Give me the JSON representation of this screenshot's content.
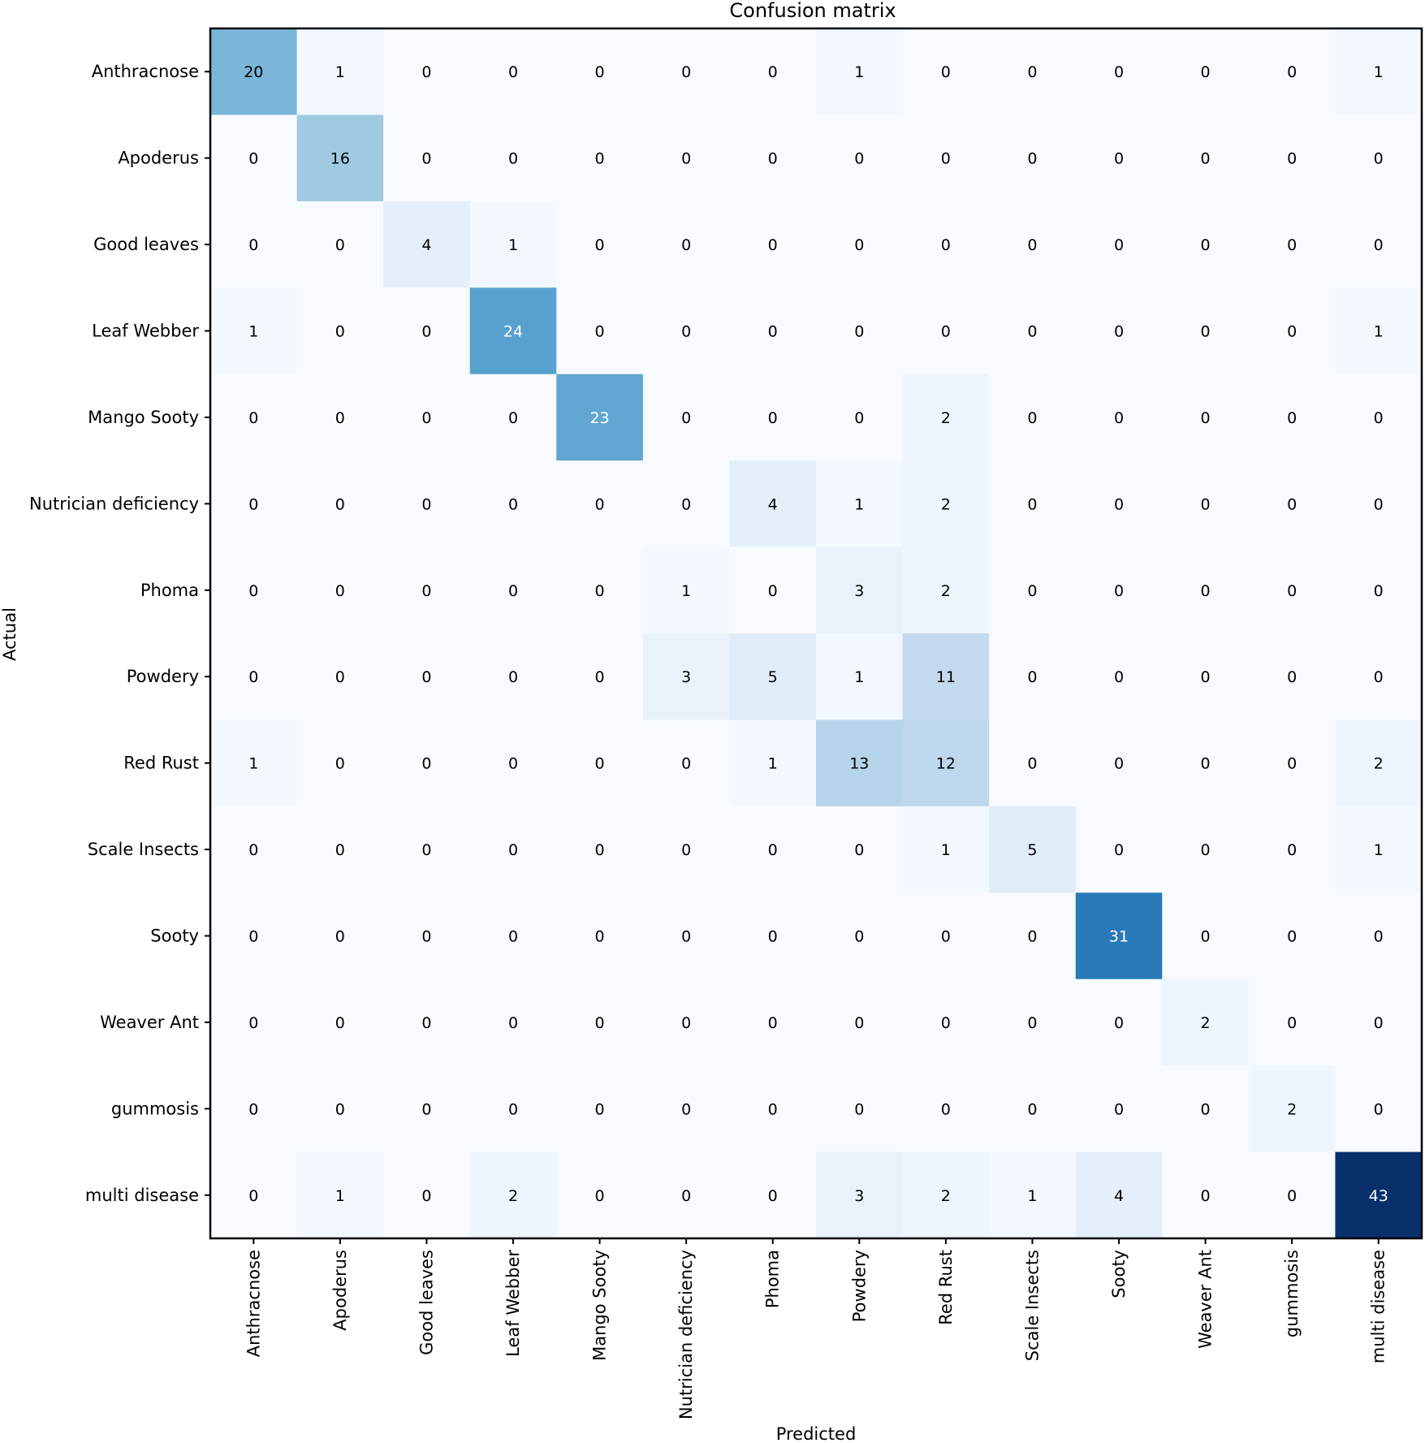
{
  "chart_data": {
    "type": "heatmap",
    "title": "Confusion matrix",
    "xlabel": "Predicted",
    "ylabel": "Actual",
    "colormap": "Blues",
    "x_categories": [
      "Anthracnose",
      "Apoderus",
      "Good leaves",
      "Leaf Webber",
      "Mango Sooty",
      "Nutrician deficiency",
      "Phoma",
      "Powdery",
      "Red Rust",
      "Scale Insects",
      "Sooty",
      "Weaver Ant",
      "gummosis",
      "multi disease"
    ],
    "y_categories": [
      "Anthracnose",
      "Apoderus",
      "Good leaves",
      "Leaf Webber",
      "Mango Sooty",
      "Nutrician deficiency",
      "Phoma",
      "Powdery",
      "Red Rust",
      "Scale Insects",
      "Sooty",
      "Weaver Ant",
      "gummosis",
      "multi disease"
    ],
    "values": [
      [
        20,
        1,
        0,
        0,
        0,
        0,
        0,
        1,
        0,
        0,
        0,
        0,
        0,
        1
      ],
      [
        0,
        16,
        0,
        0,
        0,
        0,
        0,
        0,
        0,
        0,
        0,
        0,
        0,
        0
      ],
      [
        0,
        0,
        4,
        1,
        0,
        0,
        0,
        0,
        0,
        0,
        0,
        0,
        0,
        0
      ],
      [
        1,
        0,
        0,
        24,
        0,
        0,
        0,
        0,
        0,
        0,
        0,
        0,
        0,
        1
      ],
      [
        0,
        0,
        0,
        0,
        23,
        0,
        0,
        0,
        2,
        0,
        0,
        0,
        0,
        0
      ],
      [
        0,
        0,
        0,
        0,
        0,
        0,
        4,
        1,
        2,
        0,
        0,
        0,
        0,
        0
      ],
      [
        0,
        0,
        0,
        0,
        0,
        1,
        0,
        3,
        2,
        0,
        0,
        0,
        0,
        0
      ],
      [
        0,
        0,
        0,
        0,
        0,
        3,
        5,
        1,
        11,
        0,
        0,
        0,
        0,
        0
      ],
      [
        1,
        0,
        0,
        0,
        0,
        0,
        1,
        13,
        12,
        0,
        0,
        0,
        0,
        2
      ],
      [
        0,
        0,
        0,
        0,
        0,
        0,
        0,
        0,
        1,
        5,
        0,
        0,
        0,
        1
      ],
      [
        0,
        0,
        0,
        0,
        0,
        0,
        0,
        0,
        0,
        0,
        31,
        0,
        0,
        0
      ],
      [
        0,
        0,
        0,
        0,
        0,
        0,
        0,
        0,
        0,
        0,
        0,
        2,
        0,
        0
      ],
      [
        0,
        0,
        0,
        0,
        0,
        0,
        0,
        0,
        0,
        0,
        0,
        0,
        2,
        0
      ],
      [
        0,
        1,
        0,
        2,
        0,
        0,
        0,
        3,
        2,
        1,
        4,
        0,
        0,
        43
      ]
    ],
    "vmin": 0,
    "vmax": 43,
    "grid": false
  }
}
